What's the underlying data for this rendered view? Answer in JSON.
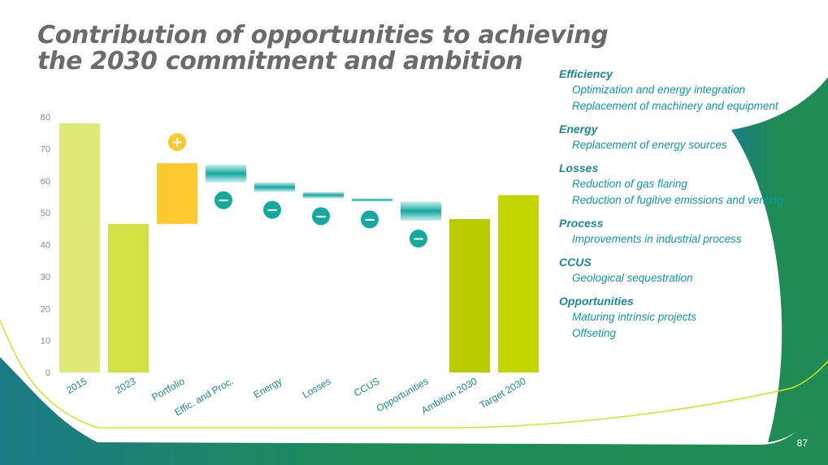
{
  "slide": {
    "title_line1": "Contribution of opportunities to achieving",
    "title_line2": "the 2030 commitment and ambition",
    "page_number": "87"
  },
  "colors": {
    "bar_2015": "#dfea78",
    "bar_2023": "#d4e145",
    "bar_portfolio": "#fdc830",
    "reduction": "#1fb5ad",
    "bar_ambition": "#b8cc00",
    "bar_target": "#c4d600",
    "badge_plus": "#fdc830",
    "badge_minus": "#14a99f",
    "bg_teal": "#1a7c86",
    "bg_green": "#1e8c54"
  },
  "legend": [
    {
      "heading": "Efficiency",
      "items": [
        "Optimization and energy integration",
        "Replacement of machinery and equipment"
      ]
    },
    {
      "heading": "Energy",
      "items": [
        "Replacement of energy sources"
      ]
    },
    {
      "heading": "Losses",
      "items": [
        "Reduction of gas flaring",
        "Reduction of fugitive emissions and venting"
      ]
    },
    {
      "heading": "Process",
      "items": [
        "Improvements in industrial process"
      ]
    },
    {
      "heading": "CCUS",
      "items": [
        "Geological sequestration"
      ]
    },
    {
      "heading": "Opportunities",
      "items": [
        "Maturing intrinsic projects",
        "Offseting"
      ]
    }
  ],
  "chart_data": {
    "type": "bar",
    "subtype": "waterfall",
    "title": "Contribution of opportunities to achieving the 2030 commitment and ambition",
    "xlabel": "",
    "ylabel": "",
    "ylim": [
      0,
      80
    ],
    "yticks": [
      0,
      10,
      20,
      30,
      40,
      50,
      60,
      70,
      80
    ],
    "grid": false,
    "categories": [
      "2015",
      "2023",
      "Portfolio",
      "Effic. and Proc.",
      "Energy",
      "Losses",
      "CCUS",
      "Opportunities",
      "Ambition 2030",
      "Target 2030"
    ],
    "bars": [
      {
        "label": "2015",
        "kind": "total",
        "start": 0,
        "end": 78,
        "color_key": "bar_2015"
      },
      {
        "label": "2023",
        "kind": "total",
        "start": 0,
        "end": 46.5,
        "color_key": "bar_2023"
      },
      {
        "label": "Portfolio",
        "kind": "increase",
        "start": 46.5,
        "end": 65.5,
        "badge": "+",
        "color_key": "bar_portfolio"
      },
      {
        "label": "Effic. and Proc.",
        "kind": "decrease",
        "start": 65,
        "end": 59.5,
        "badge": "−",
        "color_key": "reduction"
      },
      {
        "label": "Energy",
        "kind": "decrease",
        "start": 59.5,
        "end": 56.5,
        "badge": "−",
        "color_key": "reduction"
      },
      {
        "label": "Losses",
        "kind": "decrease",
        "start": 56.5,
        "end": 54.5,
        "badge": "−",
        "color_key": "reduction"
      },
      {
        "label": "CCUS",
        "kind": "decrease",
        "start": 54.5,
        "end": 53.5,
        "badge": "−",
        "color_key": "reduction"
      },
      {
        "label": "Opportunities",
        "kind": "decrease",
        "start": 53.5,
        "end": 47.5,
        "badge": "−",
        "color_key": "reduction"
      },
      {
        "label": "Ambition 2030",
        "kind": "total",
        "start": 0,
        "end": 48,
        "color_key": "bar_ambition"
      },
      {
        "label": "Target 2030",
        "kind": "total",
        "start": 0,
        "end": 55.5,
        "color_key": "bar_target"
      }
    ]
  }
}
